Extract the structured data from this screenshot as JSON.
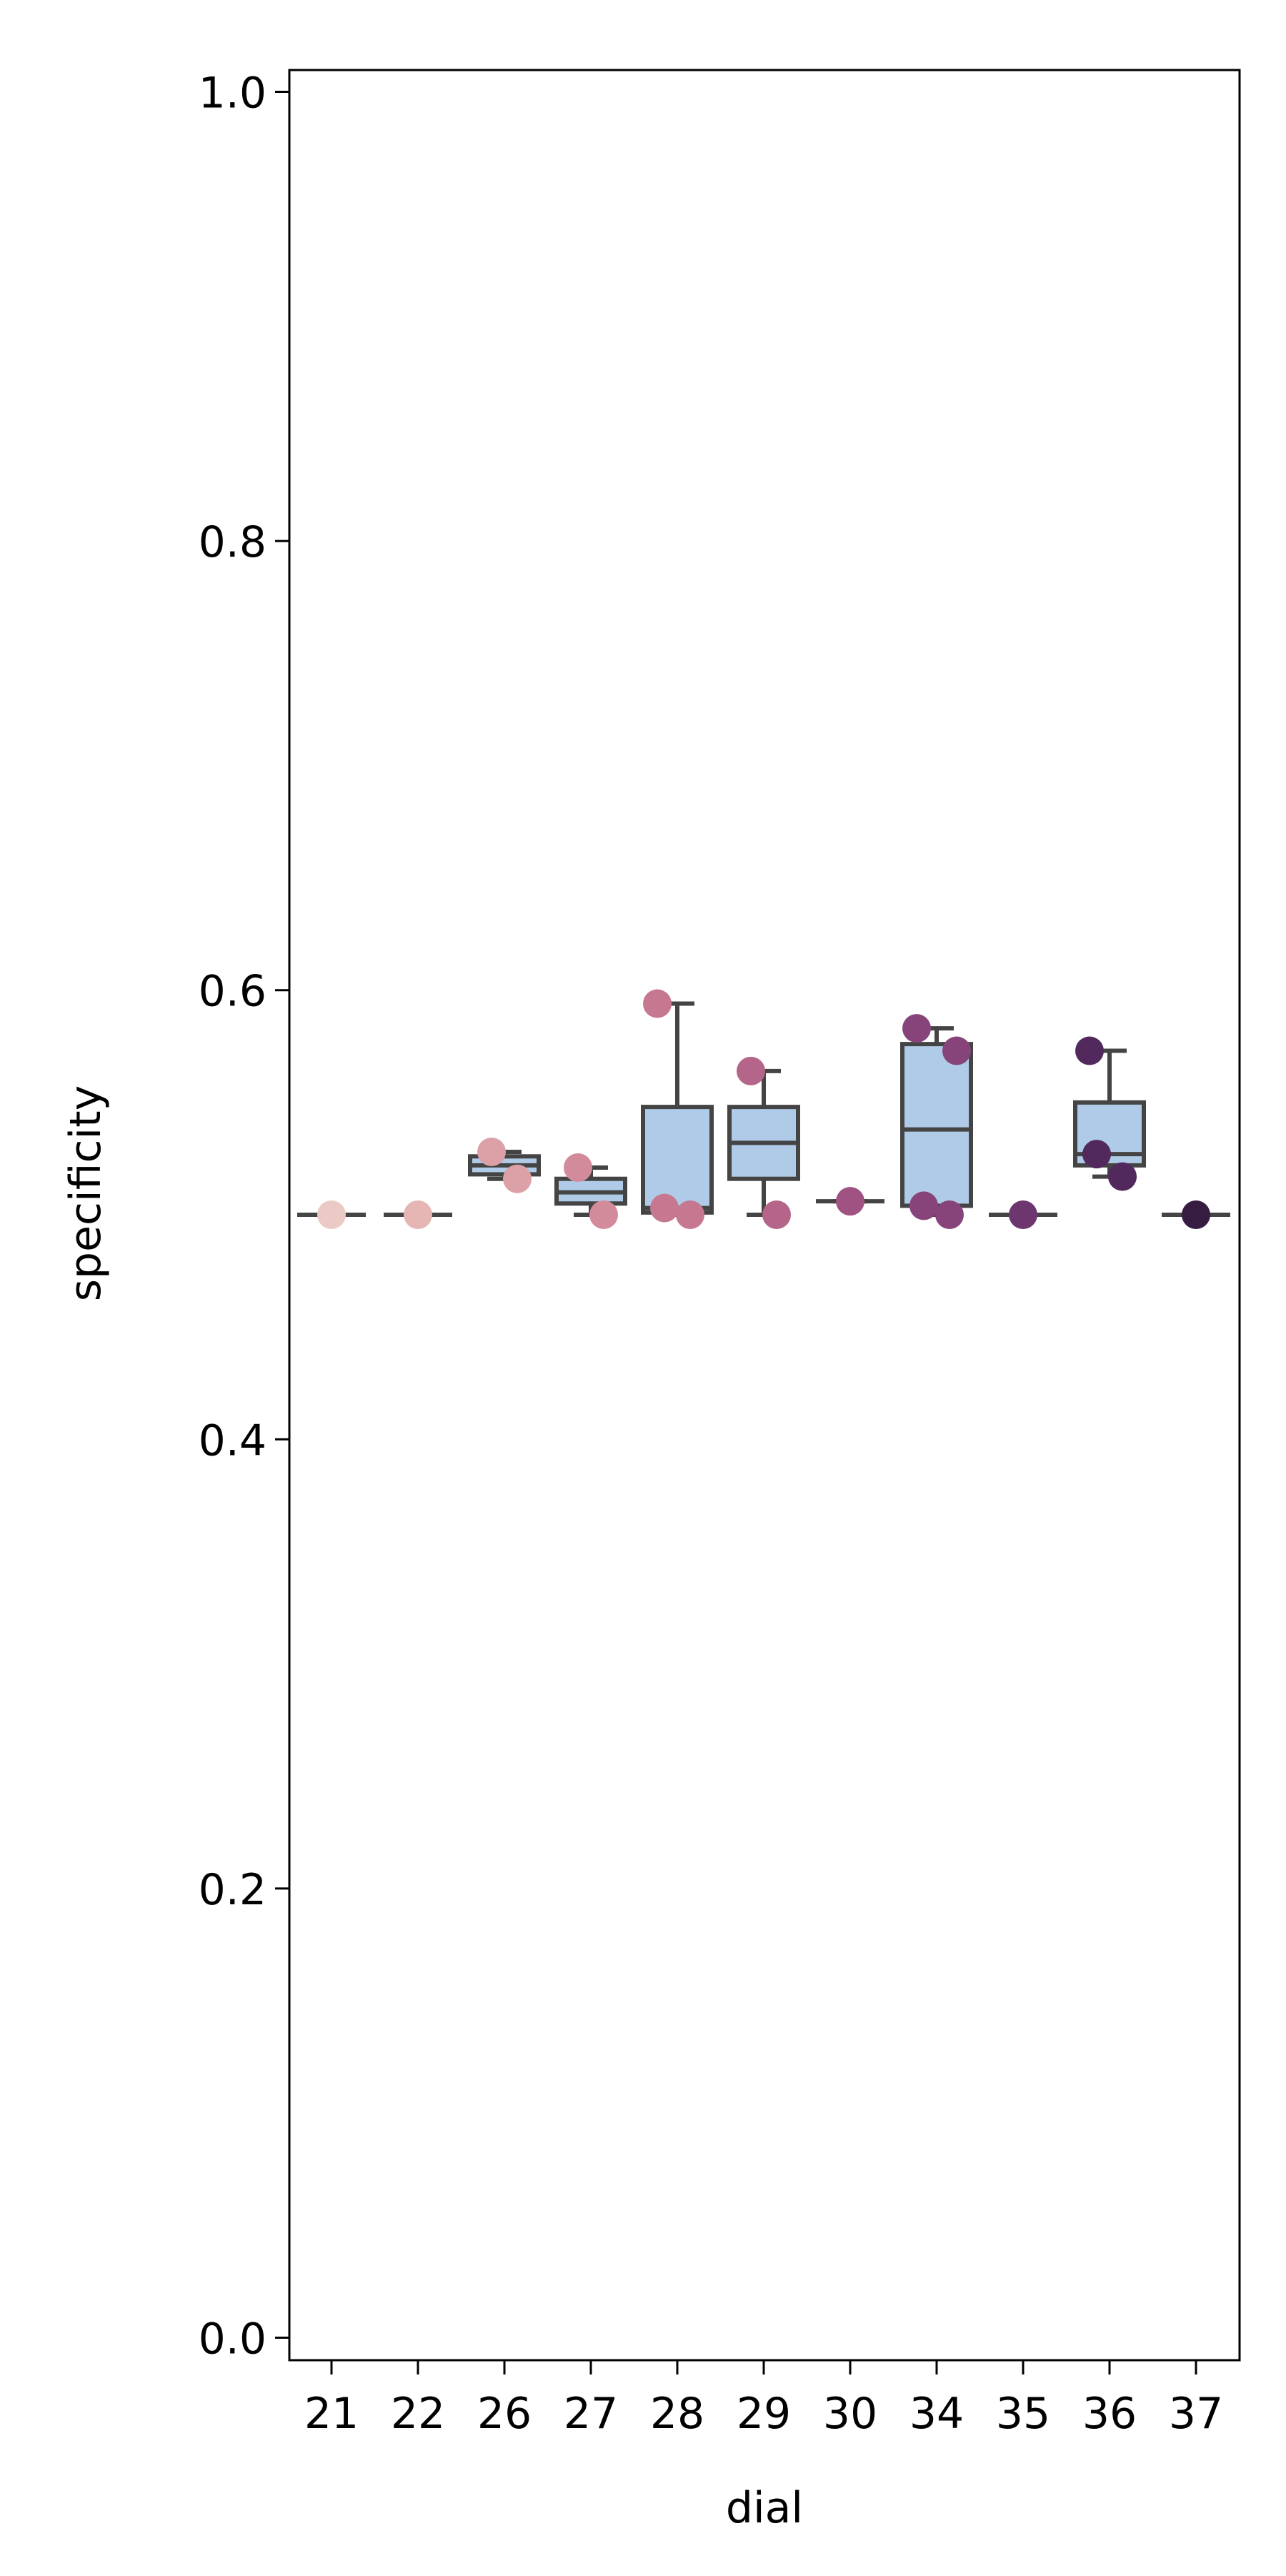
{
  "chart_data": {
    "type": "box",
    "title": "",
    "xlabel": "dial",
    "ylabel": "specificity",
    "ylim": [
      -0.01,
      1.01
    ],
    "yticks": [
      0.0,
      0.2,
      0.4,
      0.6,
      0.8,
      1.0
    ],
    "ytick_labels": [
      "0.0",
      "0.2",
      "0.4",
      "0.6",
      "0.8",
      "1.0"
    ],
    "categories": [
      "21",
      "22",
      "26",
      "27",
      "28",
      "29",
      "30",
      "34",
      "35",
      "36",
      "37"
    ],
    "grid": false,
    "legend": "none",
    "box_color": "#b0cbe7",
    "box_edge_color": "#444444",
    "boxes": [
      {
        "category": "21",
        "whisker_low": 0.5,
        "q1": 0.5,
        "median": 0.5,
        "q3": 0.5,
        "whisker_high": 0.5
      },
      {
        "category": "22",
        "whisker_low": 0.5,
        "q1": 0.5,
        "median": 0.5,
        "q3": 0.5,
        "whisker_high": 0.5
      },
      {
        "category": "26",
        "whisker_low": 0.516,
        "q1": 0.518,
        "median": 0.522,
        "q3": 0.526,
        "whisker_high": 0.528
      },
      {
        "category": "27",
        "whisker_low": 0.5,
        "q1": 0.505,
        "median": 0.51,
        "q3": 0.516,
        "whisker_high": 0.521
      },
      {
        "category": "28",
        "whisker_low": 0.5,
        "q1": 0.501,
        "median": 0.503,
        "q3": 0.548,
        "whisker_high": 0.594
      },
      {
        "category": "29",
        "whisker_low": 0.5,
        "q1": 0.516,
        "median": 0.532,
        "q3": 0.548,
        "whisker_high": 0.564
      },
      {
        "category": "30",
        "whisker_low": 0.506,
        "q1": 0.506,
        "median": 0.506,
        "q3": 0.506,
        "whisker_high": 0.506
      },
      {
        "category": "34",
        "whisker_low": 0.5,
        "q1": 0.504,
        "median": 0.538,
        "q3": 0.576,
        "whisker_high": 0.583
      },
      {
        "category": "35",
        "whisker_low": 0.5,
        "q1": 0.5,
        "median": 0.5,
        "q3": 0.5,
        "whisker_high": 0.5
      },
      {
        "category": "36",
        "whisker_low": 0.517,
        "q1": 0.522,
        "median": 0.527,
        "q3": 0.55,
        "whisker_high": 0.573
      },
      {
        "category": "37",
        "whisker_low": 0.5,
        "q1": 0.5,
        "median": 0.5,
        "q3": 0.5,
        "whisker_high": 0.5
      }
    ],
    "points": [
      {
        "category": "21",
        "values": [
          0.5
        ],
        "color": "#ebcac5"
      },
      {
        "category": "22",
        "values": [
          0.5
        ],
        "color": "#e5b6b4"
      },
      {
        "category": "26",
        "values": [
          0.528,
          0.516
        ],
        "color": "#dca1a6"
      },
      {
        "category": "27",
        "values": [
          0.521,
          0.5
        ],
        "color": "#d28b9a"
      },
      {
        "category": "28",
        "values": [
          0.503,
          0.5,
          0.594
        ],
        "color": "#c67891"
      },
      {
        "category": "29",
        "values": [
          0.564,
          0.5
        ],
        "color": "#b56589"
      },
      {
        "category": "30",
        "values": [
          0.506
        ],
        "color": "#a05383"
      },
      {
        "category": "34",
        "values": [
          0.504,
          0.5,
          0.583,
          0.573
        ],
        "color": "#87447b"
      },
      {
        "category": "35",
        "values": [
          0.5
        ],
        "color": "#6d366f"
      },
      {
        "category": "36",
        "values": [
          0.527,
          0.517,
          0.573
        ],
        "color": "#52295c"
      },
      {
        "category": "37",
        "values": [
          0.5
        ],
        "color": "#371c42"
      }
    ]
  }
}
